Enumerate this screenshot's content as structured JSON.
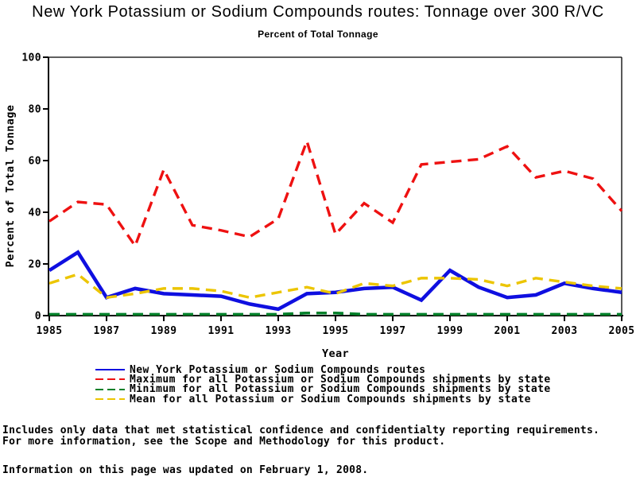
{
  "title": "New York Potassium or Sodium Compounds routes: Tonnage over 300 R/VC",
  "subtitle": "Percent of Total Tonnage",
  "chart_data": {
    "type": "line",
    "x": [
      1985,
      1986,
      1987,
      1988,
      1989,
      1990,
      1991,
      1992,
      1993,
      1994,
      1995,
      1996,
      1997,
      1998,
      1999,
      2000,
      2001,
      2002,
      2003,
      2004,
      2005
    ],
    "xlabel": "Year",
    "ylabel": "Percent of Total Tonnage",
    "ylim": [
      0,
      100
    ],
    "yticks": [
      0,
      20,
      40,
      60,
      80,
      100
    ],
    "xticks": [
      1985,
      1987,
      1989,
      1991,
      1993,
      1995,
      1997,
      1999,
      2001,
      2003,
      2005
    ],
    "grid": false,
    "legend_position": "bottom-left",
    "series": [
      {
        "name": "New York Potassium or Sodium Compounds routes",
        "color": "#0f0fe0",
        "style": "solid",
        "values": [
          17.5,
          24.5,
          7,
          10.5,
          8.5,
          8,
          7.5,
          4.5,
          2.5,
          8.5,
          9,
          10.5,
          11,
          6,
          17.5,
          11,
          7,
          8,
          12.5,
          10.5,
          9
        ]
      },
      {
        "name": "Maximum for all Potassium or Sodium Compounds shipments by state",
        "color": "#ee1111",
        "style": "dashed",
        "values": [
          36.5,
          44,
          43,
          27,
          56.5,
          35,
          33,
          30.5,
          37.5,
          67.5,
          31.5,
          43.5,
          36,
          58.5,
          59.5,
          60.5,
          65.5,
          53.5,
          56,
          53,
          40.5
        ]
      },
      {
        "name": "Minimum for all Potassium or Sodium Compounds shipments by state",
        "color": "#00802a",
        "style": "dashed",
        "values": [
          0.5,
          0.5,
          0.5,
          0.5,
          0.5,
          0.5,
          0.5,
          0.5,
          0.5,
          1,
          1,
          0.5,
          0.5,
          0.5,
          0.5,
          0.5,
          0.5,
          0.5,
          0.5,
          0.5,
          0.5
        ]
      },
      {
        "name": "Mean for all Potassium or Sodium Compounds shipments by state",
        "color": "#ecc500",
        "style": "dashed",
        "values": [
          12.5,
          16,
          7,
          8.5,
          10.5,
          10.5,
          9.5,
          7,
          9,
          11,
          8.5,
          12.5,
          11.5,
          14.5,
          14.5,
          14,
          11.5,
          14.5,
          13,
          11.5,
          10.5
        ]
      }
    ]
  },
  "footnotes": {
    "line1": "Includes only data that met statistical confidence and confidentialty reporting requirements.",
    "line2": "For more information, see the Scope and Methodology for this product.",
    "updated": "Information on this page was updated on February 1, 2008."
  }
}
